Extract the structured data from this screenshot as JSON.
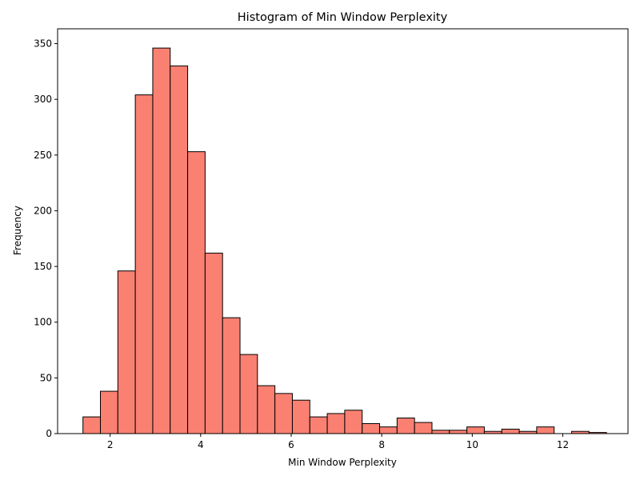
{
  "chart_data": {
    "type": "bar",
    "subtype": "histogram",
    "title": "Histogram of Min Window Perplexity",
    "xlabel": "Min Window Perplexity",
    "ylabel": "Frequency",
    "xlim": [
      0.84,
      13.44
    ],
    "ylim": [
      0,
      363.3
    ],
    "x_ticks": [
      2,
      4,
      6,
      8,
      10,
      12
    ],
    "y_ticks": [
      0,
      50,
      100,
      150,
      200,
      250,
      300,
      350
    ],
    "bin_start": 1.4,
    "bin_width": 0.3855,
    "values": [
      15,
      38,
      146,
      304,
      346,
      330,
      253,
      162,
      104,
      71,
      43,
      36,
      30,
      15,
      18,
      21,
      9,
      6,
      14,
      10,
      3,
      3,
      6,
      2,
      4,
      2,
      6,
      0,
      2,
      1
    ],
    "bar_color": "#fa8072",
    "edge_color": "#000000",
    "grid": false
  }
}
